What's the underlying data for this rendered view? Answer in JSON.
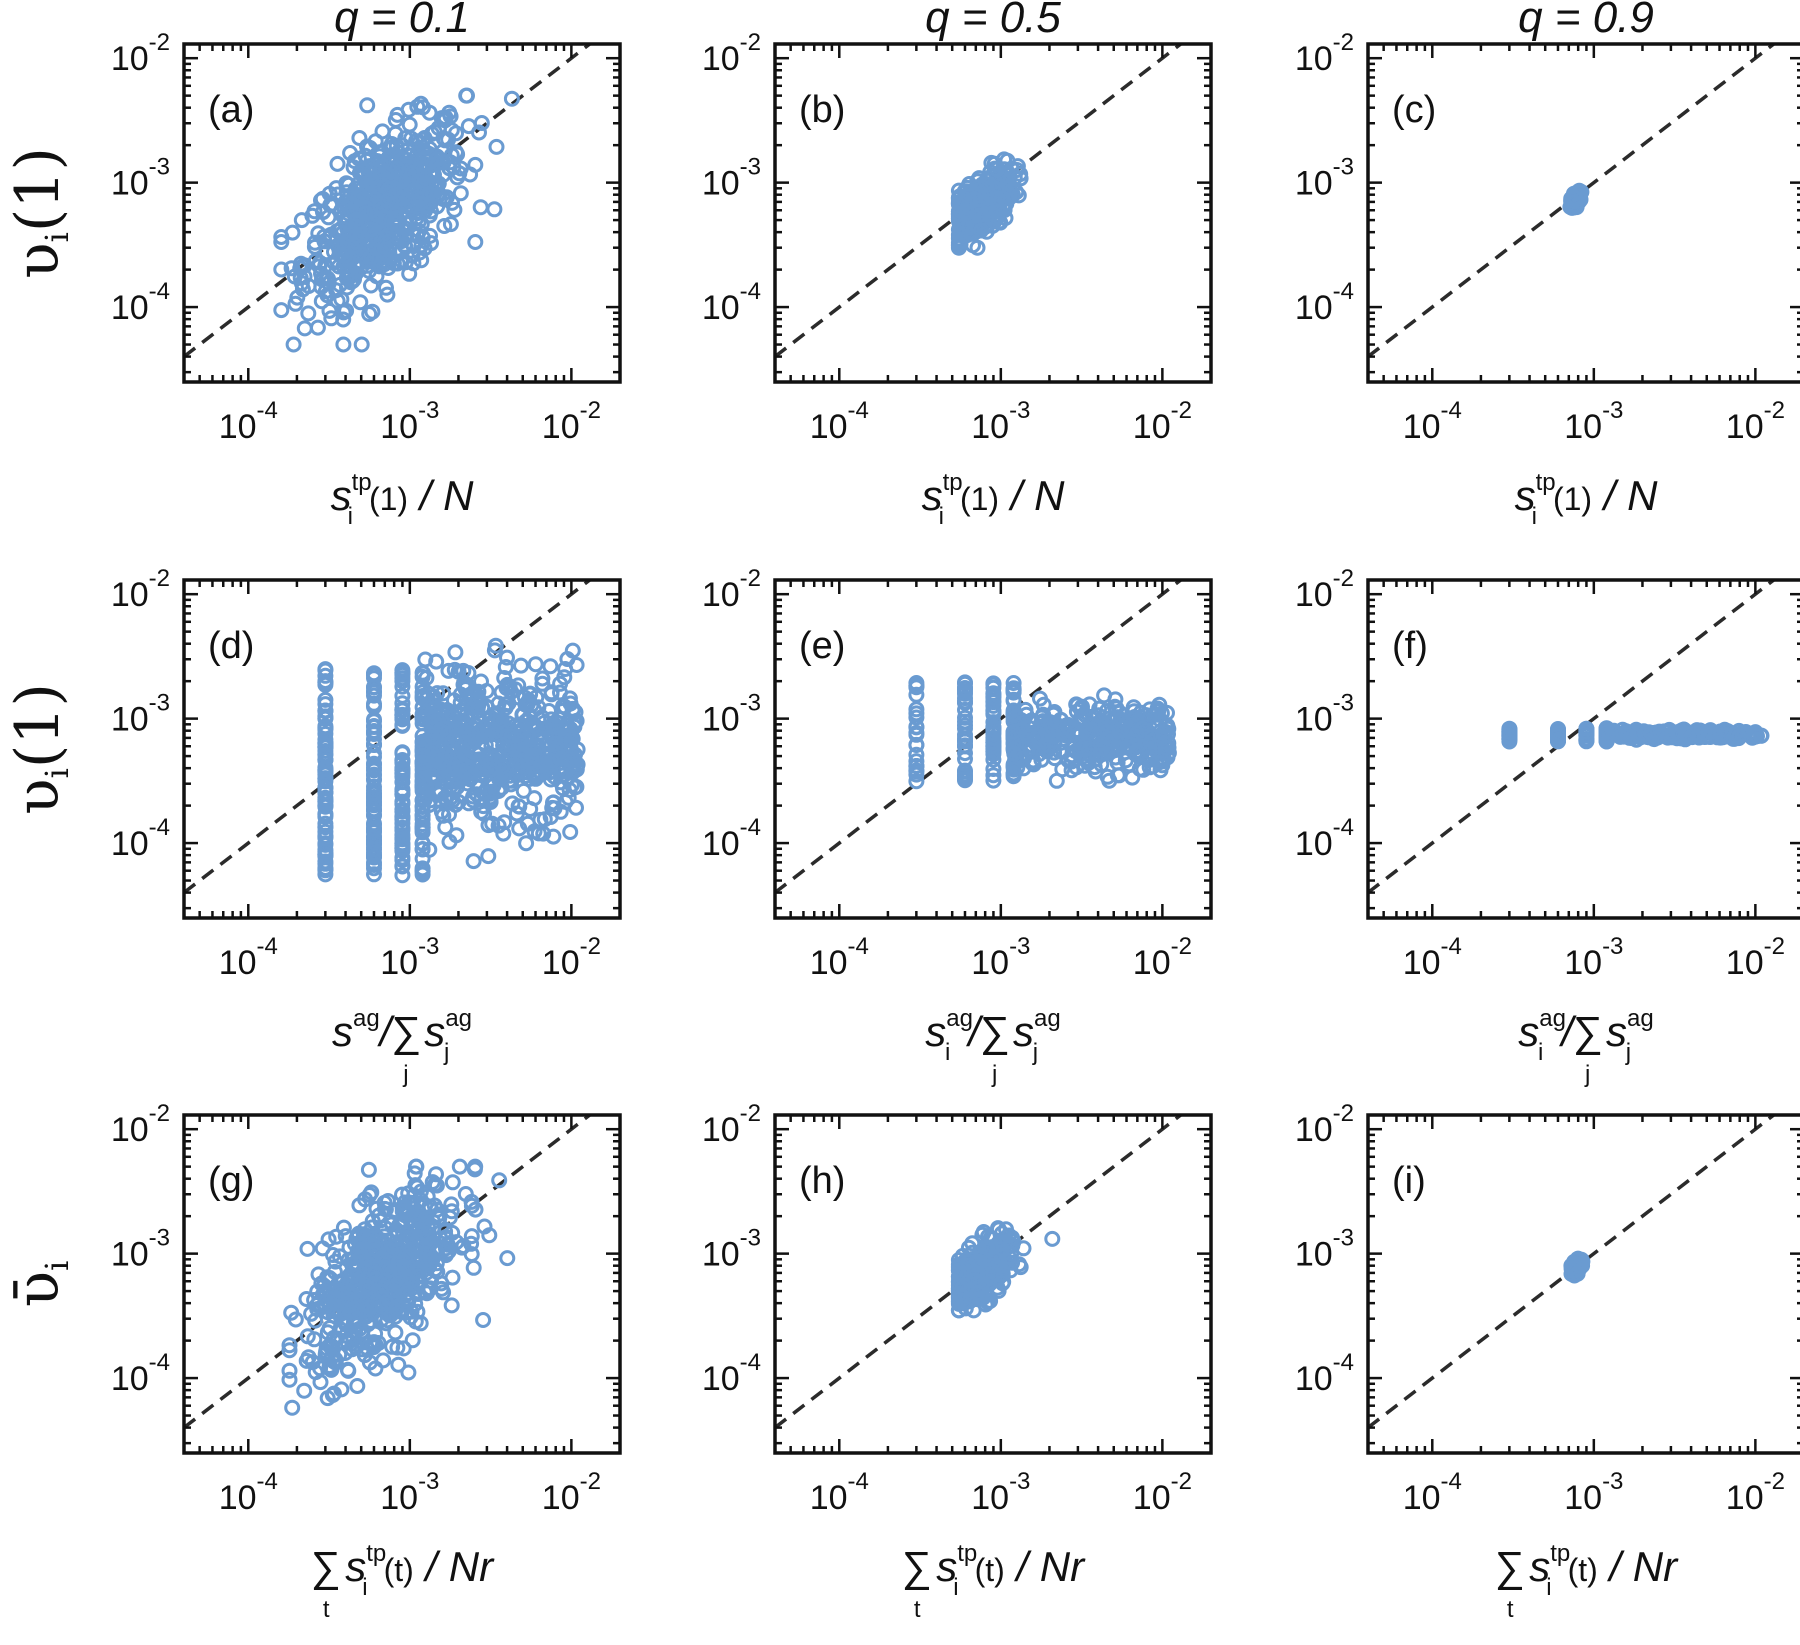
{
  "colors": {
    "points": "#6a9bd1",
    "diagonal": "#2b2b2b",
    "frame": "#111111"
  },
  "column_titles": [
    "q = 0.1",
    "q = 0.5",
    "q = 0.9"
  ],
  "row_ylabels": [
    "υ_i(1)",
    "υ_i(1)",
    "ῡ_i"
  ],
  "x_labels": [
    "s_i^tp(1) / N",
    "s^ag/∑_j s_j^ag",
    "∑_t s_i^tp(t) / Nr"
  ],
  "x_labels_alt": [
    "s_i^ag/∑_j s_j^ag"
  ],
  "tick_labels": [
    "10^-4",
    "10^-3",
    "10^-2"
  ],
  "chart_data": [
    {
      "type": "scatter",
      "panel": "(a)",
      "q": 0.1,
      "row": 0,
      "col": 0,
      "xscale": "log",
      "yscale": "log",
      "xlim": [
        4e-05,
        0.02
      ],
      "ylim": [
        2.5e-05,
        0.013
      ],
      "diagonal": "y = x",
      "n_points": 600,
      "x_range": [
        0.00016,
        0.005
      ],
      "y_range": [
        5e-05,
        0.005
      ],
      "x_median": 0.0007,
      "y_median": 0.0006
    },
    {
      "type": "scatter",
      "panel": "(b)",
      "q": 0.5,
      "row": 0,
      "col": 1,
      "xscale": "log",
      "yscale": "log",
      "xlim": [
        4e-05,
        0.02
      ],
      "ylim": [
        2.5e-05,
        0.013
      ],
      "diagonal": "y = x",
      "n_points": 300,
      "x_range": [
        0.00055,
        0.0023
      ],
      "y_range": [
        0.0003,
        0.0022
      ],
      "x_median": 0.00075,
      "y_median": 0.00065
    },
    {
      "type": "scatter",
      "panel": "(c)",
      "q": 0.9,
      "row": 0,
      "col": 2,
      "xscale": "log",
      "yscale": "log",
      "xlim": [
        4e-05,
        0.02
      ],
      "ylim": [
        2.5e-05,
        0.013
      ],
      "diagonal": "y = x",
      "n_points": 80,
      "x_range": [
        0.0007,
        0.00085
      ],
      "y_range": [
        0.0006,
        0.0009
      ],
      "x_median": 0.00077,
      "y_median": 0.00073
    },
    {
      "type": "scatter",
      "panel": "(d)",
      "q": 0.1,
      "row": 1,
      "col": 0,
      "xscale": "log",
      "yscale": "log",
      "xlim": [
        4e-05,
        0.02
      ],
      "ylim": [
        2.5e-05,
        0.013
      ],
      "diagonal": "y = x",
      "n_points": 900,
      "x_columns": [
        0.0003,
        0.0006,
        0.0009,
        0.0012
      ],
      "x_range": [
        0.0003,
        0.011
      ],
      "y_range": [
        5.5e-05,
        0.005
      ],
      "y_median": 0.0006
    },
    {
      "type": "scatter",
      "panel": "(e)",
      "q": 0.5,
      "row": 1,
      "col": 1,
      "xscale": "log",
      "yscale": "log",
      "xlim": [
        4e-05,
        0.02
      ],
      "ylim": [
        2.5e-05,
        0.013
      ],
      "diagonal": "y = x",
      "n_points": 500,
      "x_columns": [
        0.0003,
        0.0006,
        0.0009,
        0.0012
      ],
      "x_range": [
        0.0003,
        0.011
      ],
      "y_range": [
        0.0003,
        0.0022
      ],
      "y_median": 0.0007
    },
    {
      "type": "scatter",
      "panel": "(f)",
      "q": 0.9,
      "row": 1,
      "col": 2,
      "xscale": "log",
      "yscale": "log",
      "xlim": [
        4e-05,
        0.02
      ],
      "ylim": [
        2.5e-05,
        0.013
      ],
      "diagonal": "y = x",
      "n_points": 300,
      "x_columns": [
        0.0003,
        0.0006,
        0.0009,
        0.0012
      ],
      "x_range": [
        0.0003,
        0.011
      ],
      "y_range": [
        0.00065,
        0.00085
      ],
      "y_median": 0.00074
    },
    {
      "type": "scatter",
      "panel": "(g)",
      "q": 0.1,
      "row": 2,
      "col": 0,
      "xscale": "log",
      "yscale": "log",
      "xlim": [
        4e-05,
        0.02
      ],
      "ylim": [
        2.5e-05,
        0.013
      ],
      "diagonal": "y = x",
      "n_points": 600,
      "x_range": [
        0.00018,
        0.0048
      ],
      "y_range": [
        5e-05,
        0.005
      ],
      "x_median": 0.0007,
      "y_median": 0.00065
    },
    {
      "type": "scatter",
      "panel": "(h)",
      "q": 0.5,
      "row": 2,
      "col": 1,
      "xscale": "log",
      "yscale": "log",
      "xlim": [
        4e-05,
        0.02
      ],
      "ylim": [
        2.5e-05,
        0.013
      ],
      "diagonal": "y = x",
      "n_points": 300,
      "x_range": [
        0.00055,
        0.0023
      ],
      "y_range": [
        0.00035,
        0.0022
      ],
      "x_median": 0.00075,
      "y_median": 0.0007
    },
    {
      "type": "scatter",
      "panel": "(i)",
      "q": 0.9,
      "row": 2,
      "col": 2,
      "xscale": "log",
      "yscale": "log",
      "xlim": [
        4e-05,
        0.02
      ],
      "ylim": [
        2.5e-05,
        0.013
      ],
      "diagonal": "y = x",
      "n_points": 60,
      "x_range": [
        0.00072,
        0.00088
      ],
      "y_range": [
        0.00062,
        0.00095
      ],
      "x_median": 0.00078,
      "y_median": 0.00078
    }
  ]
}
